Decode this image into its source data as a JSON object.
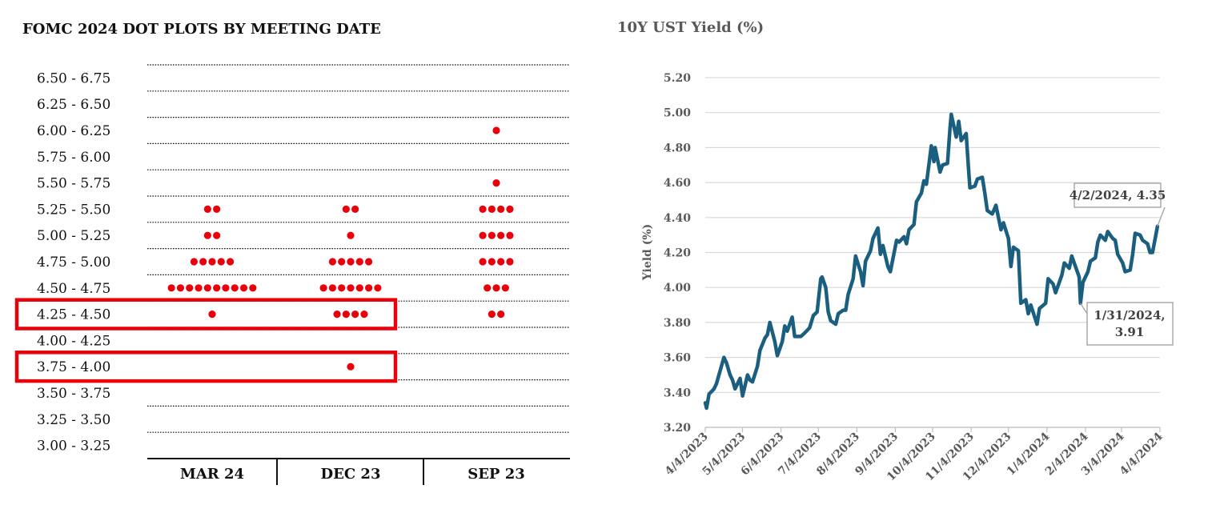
{
  "chart_data": [
    {
      "type": "scatter",
      "title": "FOMC 2024 DOT PLOTS BY MEETING DATE",
      "range_labels": [
        "6.50 - 6.75",
        "6.25 - 6.50",
        "6.00 - 6.25",
        "5.75 - 6.00",
        "5.50 - 5.75",
        "5.25 - 5.50",
        "5.00 - 5.25",
        "4.75 - 5.00",
        "4.50 - 4.75",
        "4.25 - 4.50",
        "4.00 - 4.25",
        "3.75 - 4.00",
        "3.50 - 3.75",
        "3.25 - 3.50",
        "3.00 - 3.25"
      ],
      "columns": [
        "MAR 24",
        "DEC 23",
        "SEP 23"
      ],
      "dot_counts": [
        [
          0,
          0,
          0,
          0,
          0,
          2,
          2,
          5,
          10,
          1,
          0,
          0,
          0,
          0,
          0
        ],
        [
          0,
          0,
          0,
          0,
          0,
          2,
          1,
          5,
          7,
          4,
          0,
          1,
          0,
          0,
          0
        ],
        [
          0,
          0,
          1,
          0,
          1,
          4,
          4,
          4,
          3,
          2,
          0,
          0,
          0,
          0,
          0
        ]
      ],
      "highlighted_ranges": [
        "4.25 - 4.50",
        "3.75 - 4.00"
      ],
      "dot_color": "#e8000b",
      "highlight_color": "#e8000b"
    },
    {
      "type": "line",
      "title": "10Y UST Yield (%)",
      "ylabel": "Yield (%)",
      "xlabel": "",
      "ylim": [
        3.2,
        5.2
      ],
      "yticks": [
        "3.20",
        "3.40",
        "3.60",
        "3.80",
        "4.00",
        "4.20",
        "4.40",
        "4.60",
        "4.80",
        "5.00",
        "5.20"
      ],
      "xticks": [
        "4/4/2023",
        "5/4/2023",
        "6/4/2023",
        "7/4/2023",
        "8/4/2023",
        "9/4/2023",
        "10/4/2023",
        "11/4/2023",
        "12/4/2023",
        "1/4/2024",
        "2/4/2024",
        "3/4/2024",
        "4/4/2024"
      ],
      "line_color": "#1a5f7f",
      "grid": true,
      "series": [
        {
          "points": [
            [
              "2023-04-04",
              3.34
            ],
            [
              "2023-04-05",
              3.31
            ],
            [
              "2023-04-07",
              3.39
            ],
            [
              "2023-04-11",
              3.42
            ],
            [
              "2023-04-13",
              3.45
            ],
            [
              "2023-04-17",
              3.55
            ],
            [
              "2023-04-19",
              3.6
            ],
            [
              "2023-04-21",
              3.57
            ],
            [
              "2023-04-24",
              3.5
            ],
            [
              "2023-04-26",
              3.47
            ],
            [
              "2023-04-28",
              3.42
            ],
            [
              "2023-05-02",
              3.48
            ],
            [
              "2023-05-04",
              3.38
            ],
            [
              "2023-05-08",
              3.5
            ],
            [
              "2023-05-10",
              3.47
            ],
            [
              "2023-05-12",
              3.46
            ],
            [
              "2023-05-16",
              3.55
            ],
            [
              "2023-05-18",
              3.64
            ],
            [
              "2023-05-22",
              3.71
            ],
            [
              "2023-05-24",
              3.73
            ],
            [
              "2023-05-26",
              3.8
            ],
            [
              "2023-05-30",
              3.69
            ],
            [
              "2023-06-01",
              3.61
            ],
            [
              "2023-06-05",
              3.69
            ],
            [
              "2023-06-07",
              3.78
            ],
            [
              "2023-06-09",
              3.75
            ],
            [
              "2023-06-13",
              3.83
            ],
            [
              "2023-06-15",
              3.72
            ],
            [
              "2023-06-20",
              3.72
            ],
            [
              "2023-06-23",
              3.74
            ],
            [
              "2023-06-27",
              3.77
            ],
            [
              "2023-06-30",
              3.84
            ],
            [
              "2023-07-03",
              3.86
            ],
            [
              "2023-07-06",
              4.05
            ],
            [
              "2023-07-07",
              4.06
            ],
            [
              "2023-07-10",
              4.0
            ],
            [
              "2023-07-12",
              3.86
            ],
            [
              "2023-07-14",
              3.81
            ],
            [
              "2023-07-18",
              3.79
            ],
            [
              "2023-07-20",
              3.85
            ],
            [
              "2023-07-24",
              3.87
            ],
            [
              "2023-07-26",
              3.87
            ],
            [
              "2023-07-28",
              3.96
            ],
            [
              "2023-08-01",
              4.05
            ],
            [
              "2023-08-03",
              4.18
            ],
            [
              "2023-08-07",
              4.09
            ],
            [
              "2023-08-09",
              4.01
            ],
            [
              "2023-08-11",
              4.15
            ],
            [
              "2023-08-15",
              4.21
            ],
            [
              "2023-08-17",
              4.28
            ],
            [
              "2023-08-21",
              4.34
            ],
            [
              "2023-08-23",
              4.19
            ],
            [
              "2023-08-25",
              4.24
            ],
            [
              "2023-08-29",
              4.12
            ],
            [
              "2023-08-31",
              4.09
            ],
            [
              "2023-09-05",
              4.27
            ],
            [
              "2023-09-07",
              4.26
            ],
            [
              "2023-09-11",
              4.29
            ],
            [
              "2023-09-13",
              4.25
            ],
            [
              "2023-09-15",
              4.33
            ],
            [
              "2023-09-19",
              4.36
            ],
            [
              "2023-09-21",
              4.49
            ],
            [
              "2023-09-25",
              4.54
            ],
            [
              "2023-09-27",
              4.61
            ],
            [
              "2023-09-29",
              4.59
            ],
            [
              "2023-10-03",
              4.81
            ],
            [
              "2023-10-05",
              4.72
            ],
            [
              "2023-10-06",
              4.8
            ],
            [
              "2023-10-10",
              4.66
            ],
            [
              "2023-10-12",
              4.7
            ],
            [
              "2023-10-16",
              4.71
            ],
            [
              "2023-10-18",
              4.91
            ],
            [
              "2023-10-19",
              4.99
            ],
            [
              "2023-10-23",
              4.86
            ],
            [
              "2023-10-25",
              4.95
            ],
            [
              "2023-10-27",
              4.84
            ],
            [
              "2023-10-31",
              4.88
            ],
            [
              "2023-11-02",
              4.67
            ],
            [
              "2023-11-03",
              4.57
            ],
            [
              "2023-11-07",
              4.58
            ],
            [
              "2023-11-09",
              4.62
            ],
            [
              "2023-11-13",
              4.63
            ],
            [
              "2023-11-15",
              4.54
            ],
            [
              "2023-11-17",
              4.44
            ],
            [
              "2023-11-21",
              4.42
            ],
            [
              "2023-11-24",
              4.47
            ],
            [
              "2023-11-28",
              4.33
            ],
            [
              "2023-11-30",
              4.37
            ],
            [
              "2023-12-04",
              4.28
            ],
            [
              "2023-12-06",
              4.12
            ],
            [
              "2023-12-08",
              4.23
            ],
            [
              "2023-12-12",
              4.21
            ],
            [
              "2023-12-14",
              3.91
            ],
            [
              "2023-12-18",
              3.93
            ],
            [
              "2023-12-20",
              3.85
            ],
            [
              "2023-12-22",
              3.9
            ],
            [
              "2023-12-27",
              3.79
            ],
            [
              "2023-12-29",
              3.88
            ],
            [
              "2024-01-03",
              3.91
            ],
            [
              "2024-01-05",
              4.05
            ],
            [
              "2024-01-09",
              4.02
            ],
            [
              "2024-01-11",
              3.97
            ],
            [
              "2024-01-16",
              4.07
            ],
            [
              "2024-01-18",
              4.14
            ],
            [
              "2024-01-22",
              4.11
            ],
            [
              "2024-01-24",
              4.18
            ],
            [
              "2024-01-26",
              4.14
            ],
            [
              "2024-01-30",
              4.06
            ],
            [
              "2024-01-31",
              3.91
            ],
            [
              "2024-02-02",
              4.03
            ],
            [
              "2024-02-06",
              4.09
            ],
            [
              "2024-02-08",
              4.15
            ],
            [
              "2024-02-12",
              4.17
            ],
            [
              "2024-02-14",
              4.26
            ],
            [
              "2024-02-16",
              4.3
            ],
            [
              "2024-02-20",
              4.27
            ],
            [
              "2024-02-22",
              4.32
            ],
            [
              "2024-02-26",
              4.28
            ],
            [
              "2024-02-28",
              4.27
            ],
            [
              "2024-03-01",
              4.19
            ],
            [
              "2024-03-05",
              4.14
            ],
            [
              "2024-03-07",
              4.09
            ],
            [
              "2024-03-11",
              4.1
            ],
            [
              "2024-03-13",
              4.19
            ],
            [
              "2024-03-15",
              4.31
            ],
            [
              "2024-03-19",
              4.3
            ],
            [
              "2024-03-21",
              4.27
            ],
            [
              "2024-03-25",
              4.25
            ],
            [
              "2024-03-27",
              4.2
            ],
            [
              "2024-03-29",
              4.2
            ],
            [
              "2024-04-02",
              4.35
            ]
          ]
        }
      ],
      "annotations": [
        {
          "label": "4/2/2024, 4.35",
          "x": "2024-04-02",
          "y": 4.35
        },
        {
          "label_line1": "1/31/2024,",
          "label_line2": "3.91",
          "x": "2024-01-31",
          "y": 3.91
        }
      ]
    }
  ]
}
